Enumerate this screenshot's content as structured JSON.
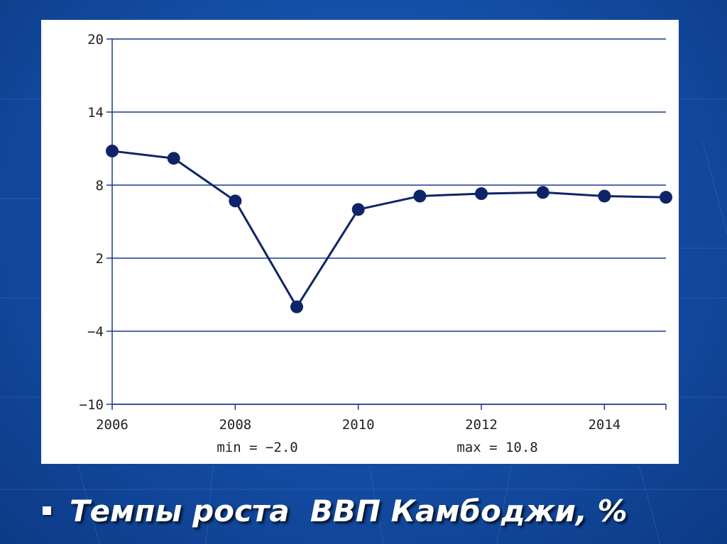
{
  "chart_data": {
    "type": "line",
    "x": [
      2006,
      2007,
      2008,
      2009,
      2010,
      2011,
      2012,
      2013,
      2014,
      2015
    ],
    "series": [
      {
        "values": [
          10.8,
          10.2,
          6.7,
          -2.0,
          6.0,
          7.1,
          7.3,
          7.4,
          7.1,
          7.0
        ]
      }
    ],
    "title": "",
    "xlabel": "",
    "ylabel": "",
    "ylim": [
      -10,
      20
    ],
    "xlim": [
      2006,
      2015
    ],
    "yticks": [
      20,
      14,
      8,
      2,
      -4,
      -10
    ],
    "xticks": [
      2006,
      2008,
      2010,
      2012,
      2014
    ],
    "grid": "horizontal",
    "legend": "none",
    "line_color": "#0f2468",
    "annotations": {
      "min": "min = -2.0",
      "max": "max = 10.8"
    }
  },
  "caption": {
    "text": "Темпы роста  ВВП Камбоджи, %"
  }
}
